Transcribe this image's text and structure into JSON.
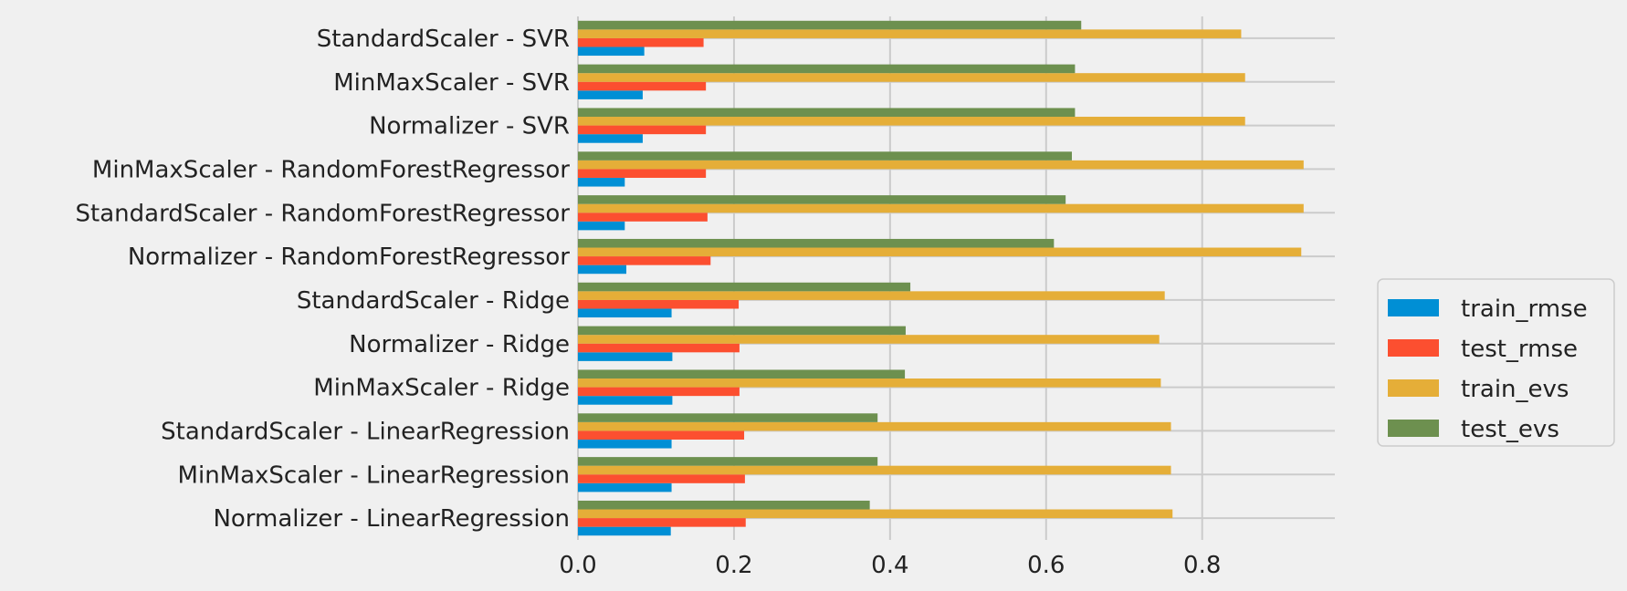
{
  "chart_data": {
    "type": "bar",
    "orientation": "horizontal",
    "categories": [
      "StandardScaler - SVR",
      "MinMaxScaler - SVR",
      "Normalizer - SVR",
      "MinMaxScaler - RandomForestRegressor",
      "StandardScaler - RandomForestRegressor",
      "Normalizer - RandomForestRegressor",
      "StandardScaler - Ridge",
      "Normalizer - Ridge",
      "MinMaxScaler - Ridge",
      "StandardScaler - LinearRegression",
      "MinMaxScaler - LinearRegression",
      "Normalizer - LinearRegression"
    ],
    "series": [
      {
        "name": "train_rmse",
        "color": "#008fd5",
        "values": [
          0.085,
          0.083,
          0.083,
          0.06,
          0.06,
          0.062,
          0.12,
          0.121,
          0.121,
          0.12,
          0.12,
          0.119
        ]
      },
      {
        "name": "test_rmse",
        "color": "#fc4f30",
        "values": [
          0.161,
          0.164,
          0.164,
          0.164,
          0.166,
          0.17,
          0.206,
          0.207,
          0.207,
          0.213,
          0.214,
          0.215
        ]
      },
      {
        "name": "train_evs",
        "color": "#e5ae38",
        "values": [
          0.85,
          0.855,
          0.855,
          0.93,
          0.93,
          0.927,
          0.752,
          0.745,
          0.747,
          0.76,
          0.76,
          0.762
        ]
      },
      {
        "name": "test_evs",
        "color": "#6d904f",
        "values": [
          0.645,
          0.637,
          0.637,
          0.633,
          0.625,
          0.61,
          0.426,
          0.42,
          0.419,
          0.384,
          0.384,
          0.374
        ]
      }
    ],
    "xlim": [
      0,
      0.97
    ],
    "xticks": [
      0.0,
      0.2,
      0.4,
      0.6,
      0.8
    ],
    "xtick_labels": [
      "0.0",
      "0.2",
      "0.4",
      "0.6",
      "0.8"
    ],
    "grid": true,
    "legend_position": "right-outside"
  }
}
